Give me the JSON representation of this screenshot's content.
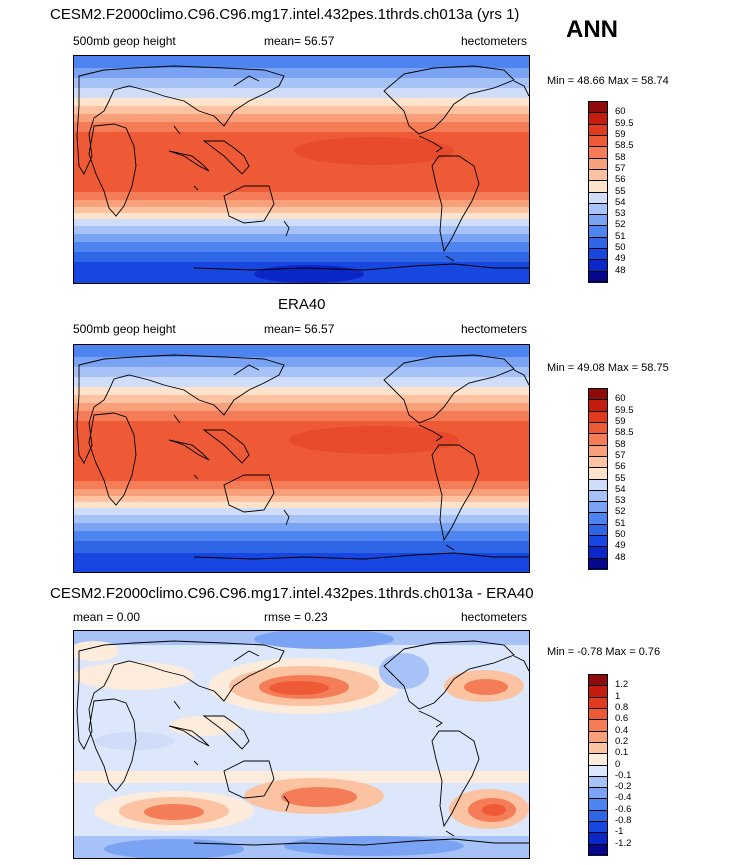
{
  "season": "ANN",
  "colors": {
    "full": [
      "#08088f",
      "#0c27c8",
      "#1846e0",
      "#2f66e6",
      "#4e84ef",
      "#7aa3f3",
      "#a6c2f7",
      "#cfddf9",
      "#fde3cc",
      "#fbc3a1",
      "#f8a07a",
      "#f47d57",
      "#ef5a36",
      "#e13a1e",
      "#c41c0f",
      "#8f0b0b"
    ],
    "diff": [
      "#08088f",
      "#0c27c8",
      "#1846e0",
      "#2f66e6",
      "#4e84ef",
      "#7aa3f3",
      "#a6c2f7",
      "#dde7fb",
      "#fdebdc",
      "#fbc3a1",
      "#f8a07a",
      "#f47d57",
      "#ef5a36",
      "#e13a1e",
      "#c41c0f",
      "#8f0b0b"
    ]
  },
  "panels": [
    {
      "title": "CESM2.F2000climo.C96.C96.mg17.intel.432pes.1thrds.ch013a (yrs 1)",
      "left": "500mb geop height",
      "center": "mean=  56.57",
      "right": "hectometers",
      "minmax": "Min =  48.66 Max =  58.74",
      "levels": [
        "60",
        "59.5",
        "59",
        "58.5",
        "58",
        "57",
        "56",
        "55",
        "54",
        "53",
        "52",
        "51",
        "50",
        "49",
        "48"
      ]
    },
    {
      "title": "ERA40",
      "left": "500mb geop height",
      "center": "mean=  56.57",
      "right": "hectometers",
      "minmax": "Min =  49.08 Max =  58.75",
      "levels": [
        "60",
        "59.5",
        "59",
        "58.5",
        "58",
        "57",
        "56",
        "55",
        "54",
        "53",
        "52",
        "51",
        "50",
        "49",
        "48"
      ]
    },
    {
      "title": "CESM2.F2000climo.C96.C96.mg17.intel.432pes.1thrds.ch013a - ERA40",
      "left": "mean =   0.00",
      "center": "rmse =   0.23",
      "right": "hectometers",
      "minmax": "Min =  -0.78 Max =   0.76",
      "levels": [
        "1.2",
        "1",
        "0.8",
        "0.6",
        "0.4",
        "0.2",
        "0.1",
        "0",
        "-0.1",
        "-0.2",
        "-0.4",
        "-0.6",
        "-0.8",
        "-1",
        "-1.2"
      ]
    }
  ],
  "chart_data": [
    {
      "type": "heatmap",
      "title": "CESM2.F2000climo.C96.C96.mg17.intel.432pes.1thrds.ch013a (yrs 1)",
      "variable": "500mb geop height",
      "units": "hectometers",
      "mean": 56.57,
      "min": 48.66,
      "max": 58.74,
      "colorbar_levels": [
        48,
        49,
        50,
        51,
        52,
        53,
        54,
        55,
        56,
        57,
        58,
        58.5,
        59,
        59.5,
        60
      ],
      "bands": [
        {
          "lat": 90,
          "value": 51.5
        },
        {
          "lat": 70,
          "value": 52.5
        },
        {
          "lat": 55,
          "value": 54.5
        },
        {
          "lat": 40,
          "value": 56.5
        },
        {
          "lat": 25,
          "value": 58.3
        },
        {
          "lat": 0,
          "value": 58.6
        },
        {
          "lat": -25,
          "value": 58.2
        },
        {
          "lat": -40,
          "value": 56.5
        },
        {
          "lat": -55,
          "value": 53.5
        },
        {
          "lat": -70,
          "value": 50.5
        },
        {
          "lat": -90,
          "value": 49.5
        }
      ]
    },
    {
      "type": "heatmap",
      "title": "ERA40",
      "variable": "500mb geop height",
      "units": "hectometers",
      "mean": 56.57,
      "min": 49.08,
      "max": 58.75,
      "colorbar_levels": [
        48,
        49,
        50,
        51,
        52,
        53,
        54,
        55,
        56,
        57,
        58,
        58.5,
        59,
        59.5,
        60
      ],
      "bands": [
        {
          "lat": 90,
          "value": 51.5
        },
        {
          "lat": 70,
          "value": 52.5
        },
        {
          "lat": 55,
          "value": 54.5
        },
        {
          "lat": 40,
          "value": 56.5
        },
        {
          "lat": 25,
          "value": 58.3
        },
        {
          "lat": 0,
          "value": 58.6
        },
        {
          "lat": -25,
          "value": 58.2
        },
        {
          "lat": -40,
          "value": 56.5
        },
        {
          "lat": -55,
          "value": 53.5
        },
        {
          "lat": -70,
          "value": 50.8
        },
        {
          "lat": -90,
          "value": 50.2
        }
      ]
    },
    {
      "type": "heatmap",
      "title": "CESM2.F2000climo.C96.C96.mg17.intel.432pes.1thrds.ch013a - ERA40",
      "units": "hectometers",
      "mean": 0.0,
      "rmse": 0.23,
      "min": -0.78,
      "max": 0.76,
      "colorbar_levels": [
        -1.2,
        -1,
        -0.8,
        -0.6,
        -0.4,
        -0.2,
        -0.1,
        0,
        0.1,
        0.2,
        0.4,
        0.6,
        0.8,
        1,
        1.2
      ]
    }
  ]
}
